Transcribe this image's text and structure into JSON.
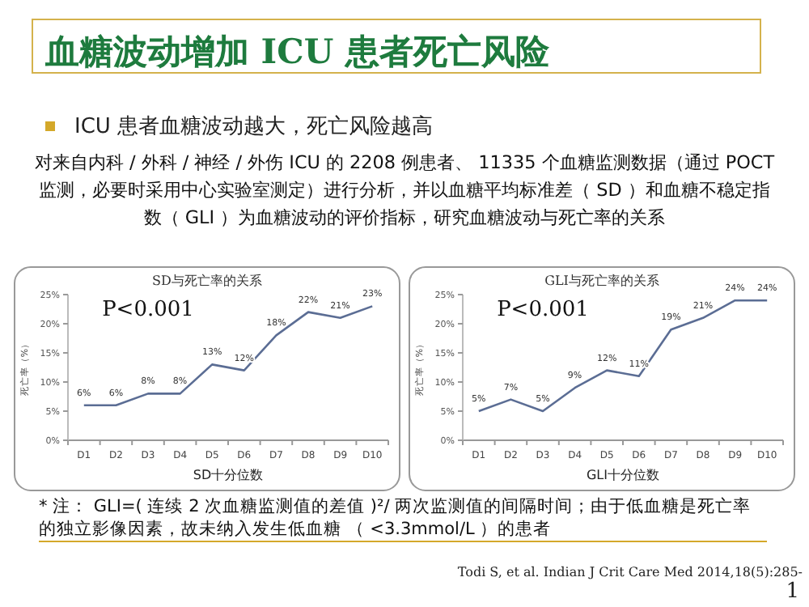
{
  "chart_data": [
    {
      "type": "other",
      "title": "血糖波动增加 ICU 患者死亡风险",
      "subtitle": "ICU 患者血糖波动越大，死亡风险越高",
      "annotations": [
        "对来自内科 / 外科 / 神经 / 外伤 ICU 的 2208 例患者、 11335 个血糖监测数据（通过 POCT 监测，必要时采用中心实验室测定）进行分析，并以血糖平均标准差（ SD ）和血糖不稳定指数（ GLI ）为血糖波动的评价指标，研究血糖波动与死亡率的关系",
        "* 注： GLI=( 连续 2 次血糖监测值的差值 )²/ 两次监测值的间隔时间；由于低血糖是死亡率的独立影像因素，故未纳入发生低血糖 （ <3.3mmol/L ）的患者",
        "Todi S, et al. Indian J Crit Care Med 2014,18(5):285-",
        "1"
      ]
    },
    {
      "type": "line",
      "title": "SD与死亡率的关系",
      "annotations": [
        "P<0.001"
      ],
      "xlabel": "SD十分位数",
      "ylabel": "死亡率（%）",
      "categories": [
        "D1",
        "D2",
        "D3",
        "D4",
        "D5",
        "D6",
        "D7",
        "D8",
        "D9",
        "D10"
      ],
      "ylim": [
        0,
        25
      ],
      "yticks": [
        {
          "value": 0,
          "label": "0%"
        },
        {
          "value": 5,
          "label": "5%"
        },
        {
          "value": 10,
          "label": "10%"
        },
        {
          "value": 15,
          "label": "15%"
        },
        {
          "value": 20,
          "label": "20%"
        },
        {
          "value": 25,
          "label": "25%"
        }
      ],
      "series": [
        {
          "color": "#5b6d94",
          "values": [
            6,
            6,
            8,
            8,
            13,
            12,
            18,
            22,
            21,
            23
          ],
          "value_labels": [
            "6%",
            "6%",
            "8%",
            "8%",
            "13%",
            "12%",
            "18%",
            "22%",
            "21%",
            "23%"
          ]
        }
      ]
    },
    {
      "type": "line",
      "title": "GLI与死亡率的关系",
      "annotations": [
        "P<0.001"
      ],
      "xlabel": "GLI十分位数",
      "ylabel": "死亡率（%）",
      "categories": [
        "D1",
        "D2",
        "D3",
        "D4",
        "D5",
        "D6",
        "D7",
        "D8",
        "D9",
        "D10"
      ],
      "ylim": [
        0,
        25
      ],
      "yticks": [
        {
          "value": 0,
          "label": "0%"
        },
        {
          "value": 5,
          "label": "5%"
        },
        {
          "value": 10,
          "label": "10%"
        },
        {
          "value": 15,
          "label": "15%"
        },
        {
          "value": 20,
          "label": "20%"
        },
        {
          "value": 25,
          "label": "25%"
        }
      ],
      "series": [
        {
          "color": "#5b6d94",
          "values": [
            5,
            7,
            5,
            9,
            12,
            11,
            19,
            21,
            24,
            24
          ],
          "value_labels": [
            "5%",
            "7%",
            "5%",
            "9%",
            "12%",
            "11%",
            "19%",
            "21%",
            "24%",
            "24%"
          ]
        }
      ]
    }
  ]
}
